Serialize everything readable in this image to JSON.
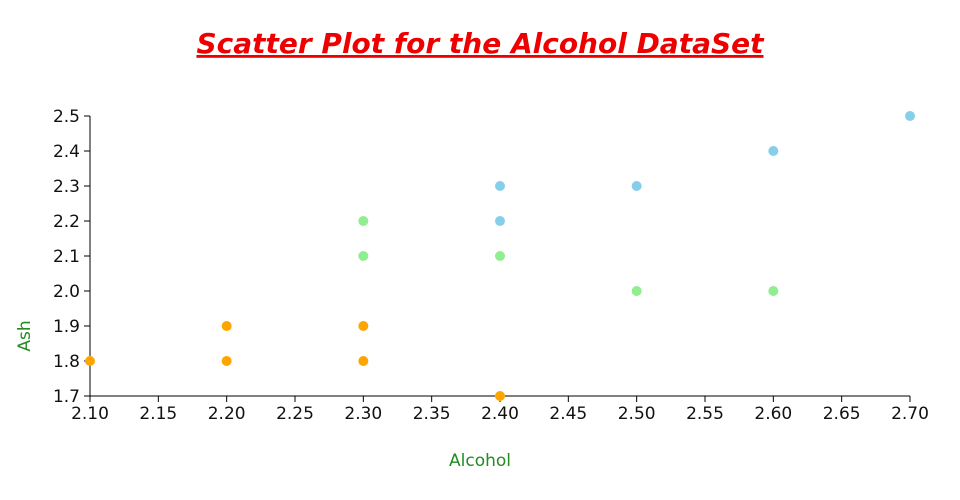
{
  "chart_data": {
    "type": "scatter",
    "title": "Scatter Plot for the Alcohol DataSet",
    "xlabel": "Alcohol",
    "ylabel": "Ash",
    "xlim": [
      2.1,
      2.7
    ],
    "ylim": [
      1.7,
      2.5
    ],
    "x_ticks": [
      "2.10",
      "2.15",
      "2.20",
      "2.25",
      "2.30",
      "2.35",
      "2.40",
      "2.45",
      "2.50",
      "2.55",
      "2.60",
      "2.65",
      "2.70"
    ],
    "y_ticks": [
      "1.7",
      "1.8",
      "1.9",
      "2.0",
      "2.1",
      "2.2",
      "2.3",
      "2.4",
      "2.5"
    ],
    "grid": false,
    "series": [
      {
        "color": "#ffa500",
        "points": [
          {
            "x": 2.1,
            "y": 1.8
          },
          {
            "x": 2.2,
            "y": 1.9
          },
          {
            "x": 2.2,
            "y": 1.8
          },
          {
            "x": 2.3,
            "y": 1.9
          },
          {
            "x": 2.3,
            "y": 1.8
          },
          {
            "x": 2.4,
            "y": 1.7
          }
        ]
      },
      {
        "color": "#90ee90",
        "points": [
          {
            "x": 2.3,
            "y": 2.2
          },
          {
            "x": 2.3,
            "y": 2.1
          },
          {
            "x": 2.4,
            "y": 2.1
          },
          {
            "x": 2.5,
            "y": 2.0
          },
          {
            "x": 2.6,
            "y": 2.0
          }
        ]
      },
      {
        "color": "#87ceeb",
        "points": [
          {
            "x": 2.4,
            "y": 2.3
          },
          {
            "x": 2.4,
            "y": 2.2
          },
          {
            "x": 2.5,
            "y": 2.3
          },
          {
            "x": 2.6,
            "y": 2.4
          },
          {
            "x": 2.7,
            "y": 2.5
          }
        ]
      }
    ],
    "title_color": "#ee0000",
    "axis_label_color": "#228b22"
  }
}
